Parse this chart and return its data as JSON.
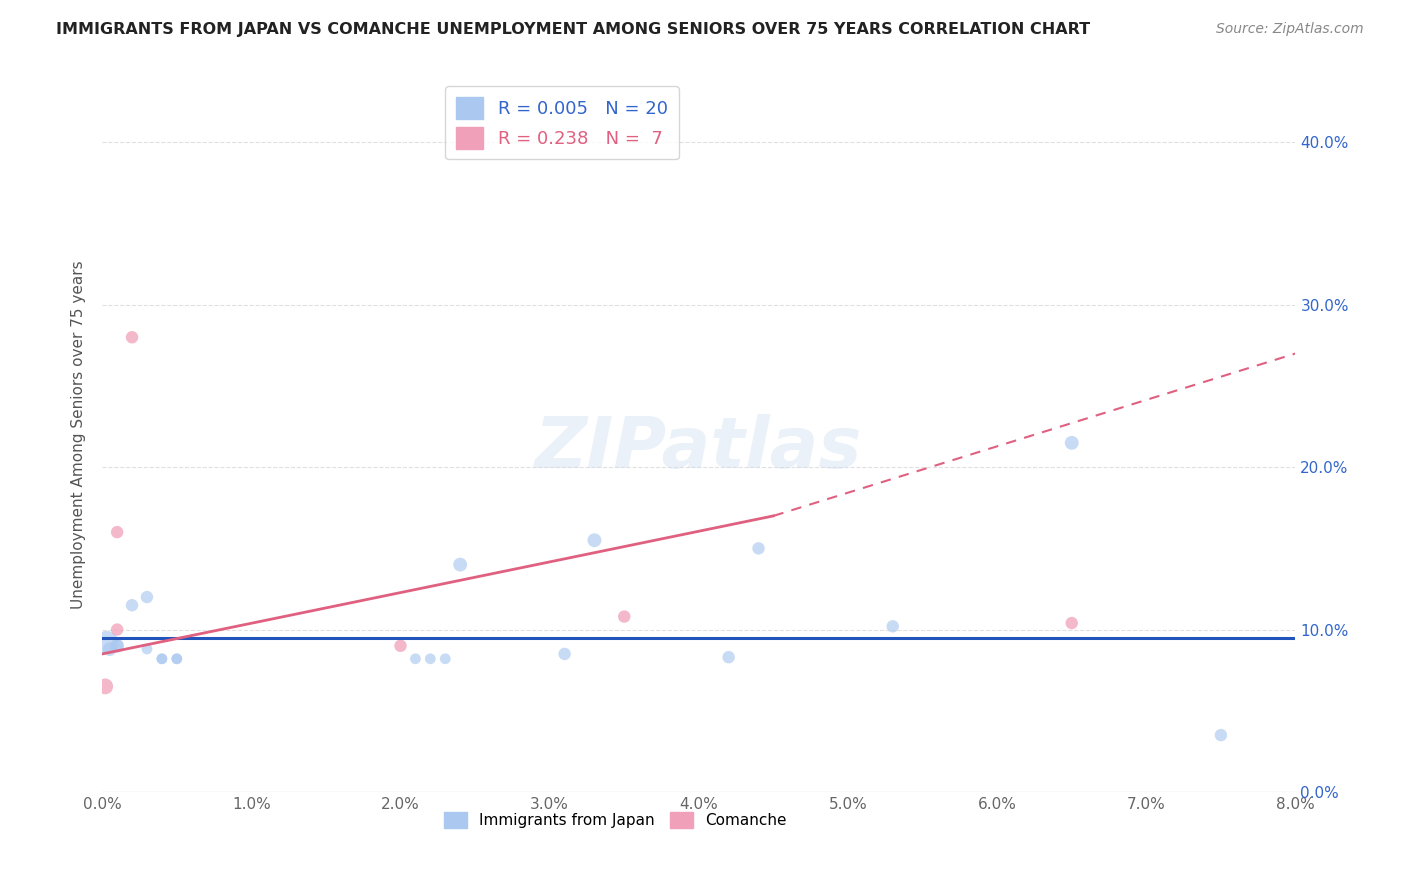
{
  "title": "IMMIGRANTS FROM JAPAN VS COMANCHE UNEMPLOYMENT AMONG SENIORS OVER 75 YEARS CORRELATION CHART",
  "source": "Source: ZipAtlas.com",
  "ylabel": "Unemployment Among Seniors over 75 years",
  "xlim": [
    0.0,
    0.08
  ],
  "ylim": [
    0.0,
    0.44
  ],
  "blue_scatter": {
    "x": [
      0.0003,
      0.0005,
      0.001,
      0.001,
      0.002,
      0.003,
      0.003,
      0.004,
      0.004,
      0.005,
      0.005,
      0.021,
      0.022,
      0.023,
      0.024,
      0.031,
      0.033,
      0.042,
      0.044,
      0.053,
      0.065,
      0.075
    ],
    "y": [
      0.092,
      0.088,
      0.09,
      0.09,
      0.115,
      0.12,
      0.088,
      0.082,
      0.082,
      0.082,
      0.082,
      0.082,
      0.082,
      0.082,
      0.14,
      0.085,
      0.155,
      0.083,
      0.15,
      0.102,
      0.215,
      0.035
    ],
    "sizes": [
      280,
      100,
      80,
      100,
      80,
      80,
      60,
      60,
      60,
      60,
      60,
      60,
      60,
      60,
      100,
      80,
      100,
      80,
      80,
      80,
      100,
      80
    ]
  },
  "pink_scatter": {
    "x": [
      0.0002,
      0.001,
      0.001,
      0.002,
      0.02,
      0.035,
      0.065
    ],
    "y": [
      0.065,
      0.1,
      0.16,
      0.28,
      0.09,
      0.108,
      0.104
    ],
    "sizes": [
      130,
      80,
      80,
      80,
      80,
      80,
      80
    ]
  },
  "blue_line": {
    "x": [
      0.0,
      0.08
    ],
    "y": [
      0.095,
      0.095
    ]
  },
  "pink_line_solid": {
    "x": [
      0.0,
      0.045
    ],
    "y": [
      0.085,
      0.17
    ]
  },
  "pink_line_dashed": {
    "x": [
      0.045,
      0.08
    ],
    "y": [
      0.17,
      0.27
    ]
  },
  "watermark_text": "ZIPatlas",
  "blue_color": "#aac8f0",
  "pink_color": "#f0a0b8",
  "blue_line_color": "#2255bb",
  "pink_line_color": "#e06080",
  "background_color": "#ffffff",
  "grid_color": "#e0e0e0",
  "yticks": [
    0.0,
    0.1,
    0.2,
    0.3,
    0.4
  ],
  "xticks": [
    0.0,
    0.01,
    0.02,
    0.03,
    0.04,
    0.05,
    0.06,
    0.07,
    0.08
  ]
}
